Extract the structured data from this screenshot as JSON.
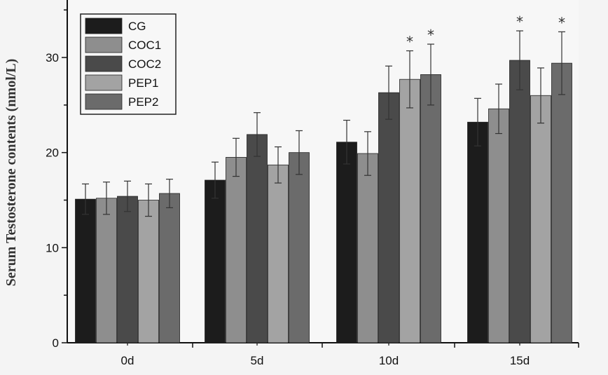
{
  "chart_data": {
    "type": "bar",
    "title": "",
    "xlabel": "",
    "ylabel": "Serum Testosterone contents (nmol/L)",
    "ylim": [
      0,
      36
    ],
    "yticks": [
      0,
      10,
      20,
      30
    ],
    "categories": [
      "0d",
      "5d",
      "10d",
      "15d"
    ],
    "series": [
      {
        "name": "CG",
        "color": "#1c1c1c",
        "values": [
          15.1,
          17.1,
          21.1,
          23.2
        ],
        "errors": [
          1.6,
          1.9,
          2.3,
          2.5
        ],
        "significant": [
          false,
          false,
          false,
          false
        ]
      },
      {
        "name": "COC1",
        "color": "#8e8e8e",
        "values": [
          15.2,
          19.5,
          19.9,
          24.6
        ],
        "errors": [
          1.7,
          2.0,
          2.3,
          2.6
        ],
        "significant": [
          false,
          false,
          false,
          false
        ]
      },
      {
        "name": "COC2",
        "color": "#4a4a4a",
        "values": [
          15.4,
          21.9,
          26.3,
          29.7
        ],
        "errors": [
          1.6,
          2.3,
          2.8,
          3.1
        ],
        "significant": [
          false,
          false,
          false,
          true
        ]
      },
      {
        "name": "PEP1",
        "color": "#a3a3a3",
        "values": [
          15.0,
          18.7,
          27.7,
          26.0
        ],
        "errors": [
          1.7,
          1.9,
          3.0,
          2.9
        ],
        "significant": [
          false,
          false,
          true,
          false
        ]
      },
      {
        "name": "PEP2",
        "color": "#6b6b6b",
        "values": [
          15.7,
          20.0,
          28.2,
          29.4
        ],
        "errors": [
          1.5,
          2.3,
          3.2,
          3.3
        ],
        "significant": [
          false,
          false,
          true,
          true
        ]
      }
    ],
    "significance_marker": "*",
    "legend_position": "top-left"
  }
}
